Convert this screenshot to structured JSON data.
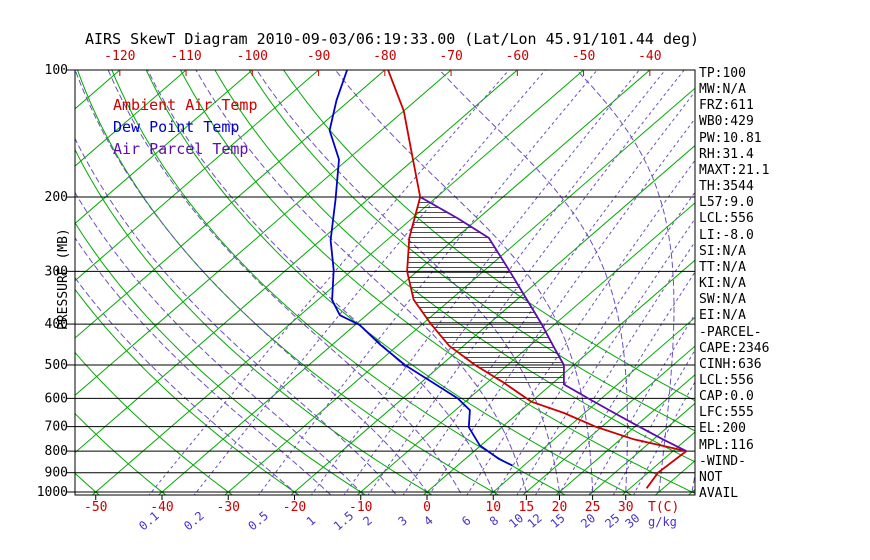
{
  "title": "AIRS SkewT Diagram 2010-09-03/06:19:33.00 (Lat/Lon 45.91/101.44 deg)",
  "colors": {
    "ambient": "#cc0000",
    "dewpoint": "#0000cc",
    "parcel": "#5c0dac",
    "isotherm_green": "#00aa00",
    "dashed_violet": "#6a4fc1",
    "mixing_label": "#4433cc",
    "axis_black": "#000000",
    "background": "#ffffff"
  },
  "legend": {
    "items": [
      {
        "label": "Ambient Air Temp",
        "color": "#cc0000"
      },
      {
        "label": "Dew Point Temp",
        "color": "#0000cc"
      },
      {
        "label": "Air Parcel Temp",
        "color": "#5c0dac"
      }
    ]
  },
  "axes": {
    "pressure_label": "PRESSURE (MB)",
    "pressure_ticks": [
      100,
      200,
      300,
      400,
      500,
      600,
      700,
      800,
      900,
      1000
    ],
    "top_temp_ticks_c": [
      -120,
      -110,
      -100,
      -90,
      -80,
      -70,
      -60,
      -50,
      -40
    ],
    "bottom_temp_ticks_c": [
      -50,
      -40,
      -30,
      -20,
      -10,
      0,
      10,
      15,
      20,
      25,
      30
    ],
    "temp_unit_label": "T(C)",
    "mixing_ratio_ticks_g_kg": [
      0.1,
      0.2,
      0.5,
      1,
      1.5,
      2,
      3,
      4,
      6,
      8,
      10,
      12,
      15,
      20,
      25,
      30
    ],
    "mixing_ratio_unit_label": "g/kg"
  },
  "stats": {
    "items": [
      "TP:100",
      "MW:N/A",
      "FRZ:611",
      "WB0:429",
      "PW:10.81",
      "RH:31.4",
      "MAXT:21.1",
      "TH:3544",
      "L57:9.0",
      "LCL:556",
      "LI:-8.0",
      "SI:N/A",
      "TT:N/A",
      "KI:N/A",
      "SW:N/A",
      "EI:N/A",
      "-PARCEL-",
      "CAPE:2346",
      "CINH:636",
      "LCL:556",
      "CAP:0.0",
      "LFC:555",
      "EL:200",
      "MPL:116",
      "-WIND-",
      "NOT",
      "AVAIL"
    ]
  },
  "chart_data": {
    "type": "line",
    "subtype": "skew-t-log-p",
    "title": "AIRS SkewT Diagram 2010-09-03/06:19:33.00 (Lat/Lon 45.91/101.44 deg)",
    "xlabel": "T(C)",
    "ylabel": "PRESSURE (MB)",
    "pressure_range_mb": [
      100,
      1050
    ],
    "legend_position": "top-left",
    "grid": {
      "isotherms_c": [
        -130,
        -120,
        -110,
        -100,
        -90,
        -80,
        -70,
        -60,
        -50,
        -40,
        -30,
        -20,
        -10,
        0,
        10,
        15,
        20,
        25,
        30,
        35,
        40
      ],
      "dry_adiabats_c": [
        -50,
        -40,
        -30,
        -20,
        -10,
        0,
        10,
        20,
        30,
        40,
        50,
        60,
        70
      ],
      "moist_adiabats_c": [
        -20,
        -15,
        -10,
        -5,
        0,
        5,
        10,
        15,
        20,
        25,
        30,
        35,
        40
      ],
      "mixing_ratio_lines_g_kg": [
        0.1,
        0.2,
        0.5,
        1,
        1.5,
        2,
        3,
        4,
        6,
        8,
        10,
        12,
        15,
        20,
        25,
        30
      ]
    },
    "series": [
      {
        "name": "Ambient Air Temp",
        "color": "#cc0000",
        "points_p_t": [
          [
            100,
            -79.5
          ],
          [
            125,
            -70
          ],
          [
            155,
            -62
          ],
          [
            200,
            -52.5
          ],
          [
            250,
            -47
          ],
          [
            300,
            -41.5
          ],
          [
            350,
            -35.6
          ],
          [
            400,
            -28.7
          ],
          [
            450,
            -22.2
          ],
          [
            500,
            -14.9
          ],
          [
            550,
            -7.6
          ],
          [
            611,
            0
          ],
          [
            650,
            6.9
          ],
          [
            700,
            14
          ],
          [
            750,
            22
          ],
          [
            800,
            32
          ],
          [
            900,
            31.5
          ],
          [
            980,
            32.5
          ]
        ]
      },
      {
        "name": "Dew Point Temp",
        "color": "#0000cc",
        "points_p_t": [
          [
            100,
            -85.7
          ],
          [
            118,
            -82
          ],
          [
            139,
            -77.8
          ],
          [
            163,
            -71.3
          ],
          [
            203,
            -64.8
          ],
          [
            253,
            -58.5
          ],
          [
            298,
            -52.8
          ],
          [
            351,
            -47.8
          ],
          [
            381,
            -44
          ],
          [
            402,
            -39.3
          ],
          [
            448,
            -32.7
          ],
          [
            500,
            -25.5
          ],
          [
            549,
            -18.4
          ],
          [
            600,
            -11.7
          ],
          [
            640,
            -7.8
          ],
          [
            702,
            -5
          ],
          [
            775,
            -0.2
          ],
          [
            835,
            5.1
          ],
          [
            866,
            8.3
          ]
        ]
      },
      {
        "name": "Air Parcel Temp",
        "color": "#5c0dac",
        "points_p_t": [
          [
            200,
            -52.5
          ],
          [
            225,
            -43
          ],
          [
            250,
            -35
          ],
          [
            300,
            -26
          ],
          [
            350,
            -18.5
          ],
          [
            400,
            -12
          ],
          [
            450,
            -6.5
          ],
          [
            500,
            -1.5
          ],
          [
            556,
            1.9
          ],
          [
            600,
            8
          ],
          [
            650,
            14.5
          ],
          [
            700,
            20.6
          ],
          [
            750,
            26.4
          ],
          [
            800,
            32
          ]
        ]
      }
    ],
    "cape_hatch": {
      "between": [
        "Air Parcel Temp",
        "Ambient Air Temp"
      ],
      "p_top_mb": 200,
      "p_bottom_mb": 556,
      "style": "horizontal-lines"
    }
  }
}
